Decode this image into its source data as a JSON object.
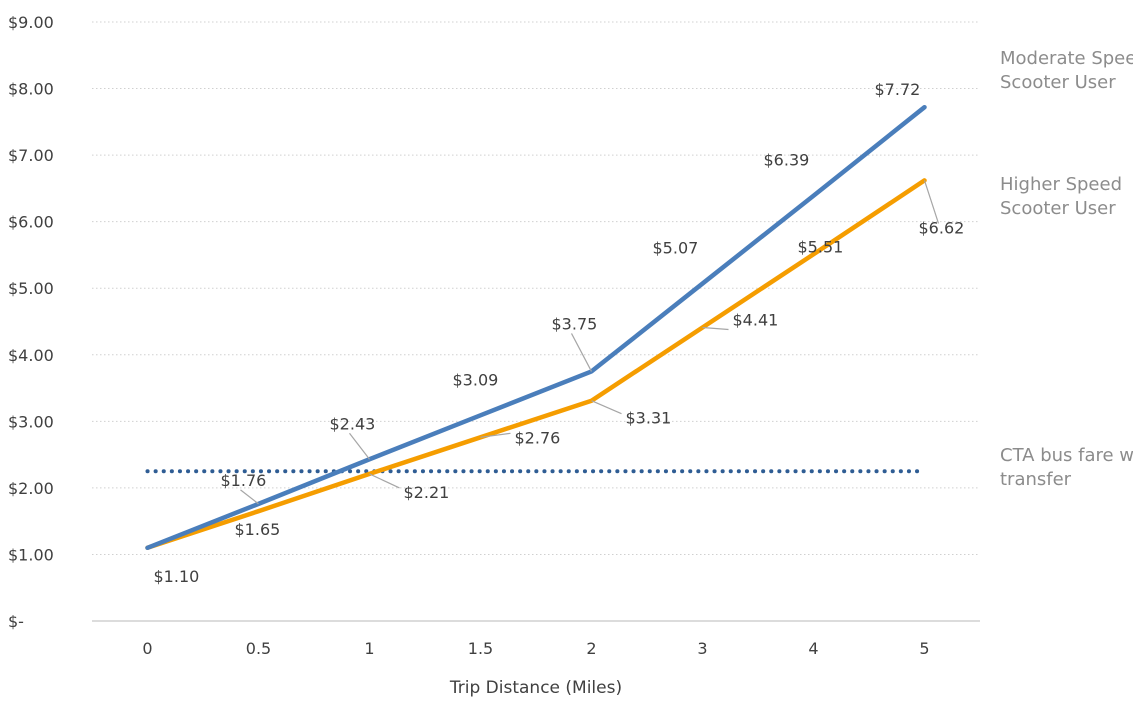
{
  "chart_data": {
    "type": "line",
    "categories": [
      "0",
      "0.5",
      "1",
      "1.5",
      "2",
      "3",
      "4",
      "5"
    ],
    "xlabel": "Trip Distance (Miles)",
    "ylabel": "",
    "ylim": [
      0,
      9
    ],
    "yticks": [
      "$-",
      "$1.00",
      "$2.00",
      "$3.00",
      "$4.00",
      "$5.00",
      "$6.00",
      "$7.00",
      "$8.00",
      "$9.00"
    ],
    "grid": "horizontal dotted",
    "series": [
      {
        "name": "Moderate Speed Scooter User",
        "name_lines": [
          "Moderate Speed",
          "Scooter User"
        ],
        "color": "#4a7ebb",
        "style": "solid",
        "values": [
          1.1,
          1.76,
          2.43,
          3.09,
          3.75,
          5.07,
          6.39,
          7.72
        ],
        "labels": [
          "",
          "$1.76",
          "$2.43",
          "$3.09",
          "$3.75",
          "$5.07",
          "$6.39",
          "$7.72"
        ]
      },
      {
        "name": "Higher Speed Scooter User",
        "name_lines": [
          "Higher Speed",
          "Scooter User"
        ],
        "color": "#f59d00",
        "style": "solid",
        "values": [
          1.1,
          1.65,
          2.21,
          2.76,
          3.31,
          4.41,
          5.51,
          6.62
        ],
        "labels": [
          "$1.10",
          "$1.65",
          "$2.21",
          "$2.76",
          "$3.31",
          "$4.41",
          "$5.51",
          "$6.62"
        ]
      },
      {
        "name": "CTA bus fare w/o transfer",
        "name_lines": [
          "CTA bus fare w/o",
          "transfer"
        ],
        "color": "#2f5d94",
        "style": "dotted",
        "values": [
          2.25,
          2.25,
          2.25,
          2.25,
          2.25,
          2.25,
          2.25,
          2.25
        ]
      }
    ]
  }
}
